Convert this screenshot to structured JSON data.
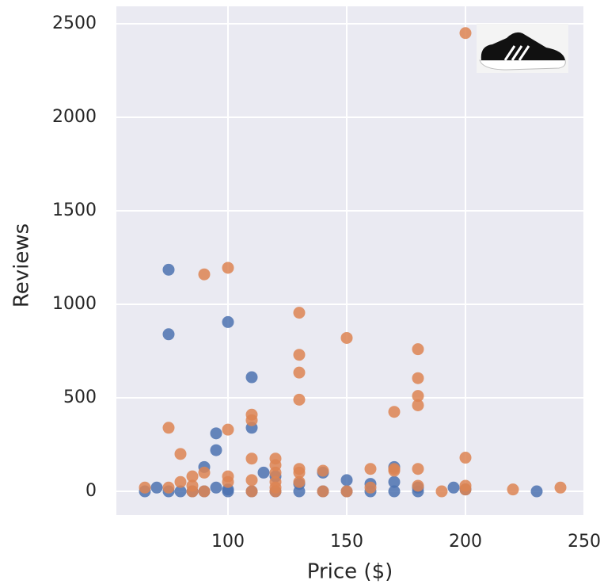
{
  "chart_data": {
    "type": "scatter",
    "xlabel": "Price ($)",
    "ylabel": "Reviews",
    "xlim": [
      53,
      250
    ],
    "ylim": [
      -127,
      2593
    ],
    "xticks": [
      100,
      150,
      200,
      250
    ],
    "yticks": [
      0,
      500,
      1000,
      1500,
      2000,
      2500
    ],
    "grid": true,
    "series": [
      {
        "color": "#4c72b0",
        "x": [
          65,
          70,
          75,
          75,
          75,
          80,
          85,
          90,
          90,
          95,
          95,
          95,
          100,
          100,
          100,
          110,
          110,
          110,
          115,
          120,
          120,
          130,
          130,
          140,
          140,
          150,
          150,
          160,
          160,
          170,
          170,
          170,
          180,
          180,
          195,
          200,
          230
        ],
        "values": [
          0,
          20,
          1185,
          840,
          0,
          0,
          0,
          130,
          0,
          310,
          220,
          20,
          905,
          0,
          10,
          610,
          340,
          0,
          100,
          80,
          0,
          0,
          40,
          100,
          0,
          60,
          0,
          40,
          0,
          130,
          50,
          0,
          0,
          20,
          20,
          10,
          0
        ]
      },
      {
        "color": "#dd8452",
        "x": [
          65,
          75,
          75,
          80,
          80,
          85,
          85,
          85,
          90,
          90,
          90,
          100,
          100,
          100,
          100,
          110,
          110,
          110,
          110,
          110,
          120,
          120,
          120,
          120,
          120,
          120,
          130,
          130,
          130,
          130,
          130,
          130,
          130,
          140,
          140,
          150,
          150,
          160,
          160,
          170,
          170,
          170,
          180,
          180,
          180,
          180,
          180,
          180,
          190,
          200,
          200,
          200,
          200,
          220,
          240
        ],
        "values": [
          20,
          340,
          20,
          200,
          50,
          80,
          30,
          0,
          1160,
          100,
          0,
          1195,
          330,
          80,
          50,
          410,
          380,
          175,
          60,
          0,
          175,
          140,
          100,
          50,
          20,
          0,
          955,
          730,
          635,
          490,
          120,
          100,
          50,
          110,
          0,
          820,
          0,
          120,
          20,
          425,
          120,
          110,
          760,
          605,
          510,
          460,
          120,
          30,
          0,
          2450,
          180,
          30,
          10,
          10,
          20
        ]
      }
    ]
  }
}
